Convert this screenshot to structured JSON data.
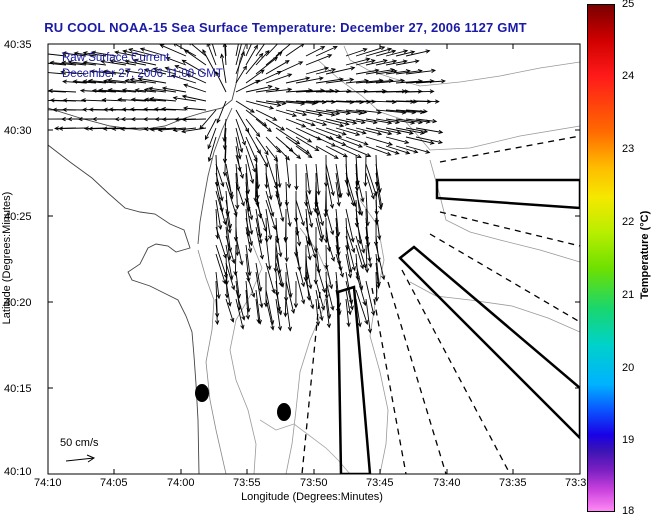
{
  "title": "RU COOL  NOAA-15  Sea Surface Temperature:  December 27, 2006 1127 GMT",
  "overlay": {
    "line1": "Raw Surface Current",
    "line2": "December 27, 2006 11:00 GMT"
  },
  "axes": {
    "xlabel": "Longitude (Degrees:Minutes)",
    "ylabel": "Latitude (Degrees:Minutes)",
    "x_ticks": [
      "74:10",
      "74:05",
      "74:00",
      "73:55",
      "73:50",
      "73:45",
      "73:40",
      "73:35",
      "73:3"
    ],
    "y_ticks": [
      "40:35",
      "40:30",
      "40:25",
      "40:20",
      "40:15",
      "40:10"
    ]
  },
  "scale": {
    "label": "50 cm/s"
  },
  "colorbar": {
    "label": "Temperature (°C)",
    "ticks": [
      "25",
      "24",
      "23",
      "22",
      "21",
      "20",
      "19",
      "18"
    ],
    "range": [
      18,
      25
    ]
  }
}
